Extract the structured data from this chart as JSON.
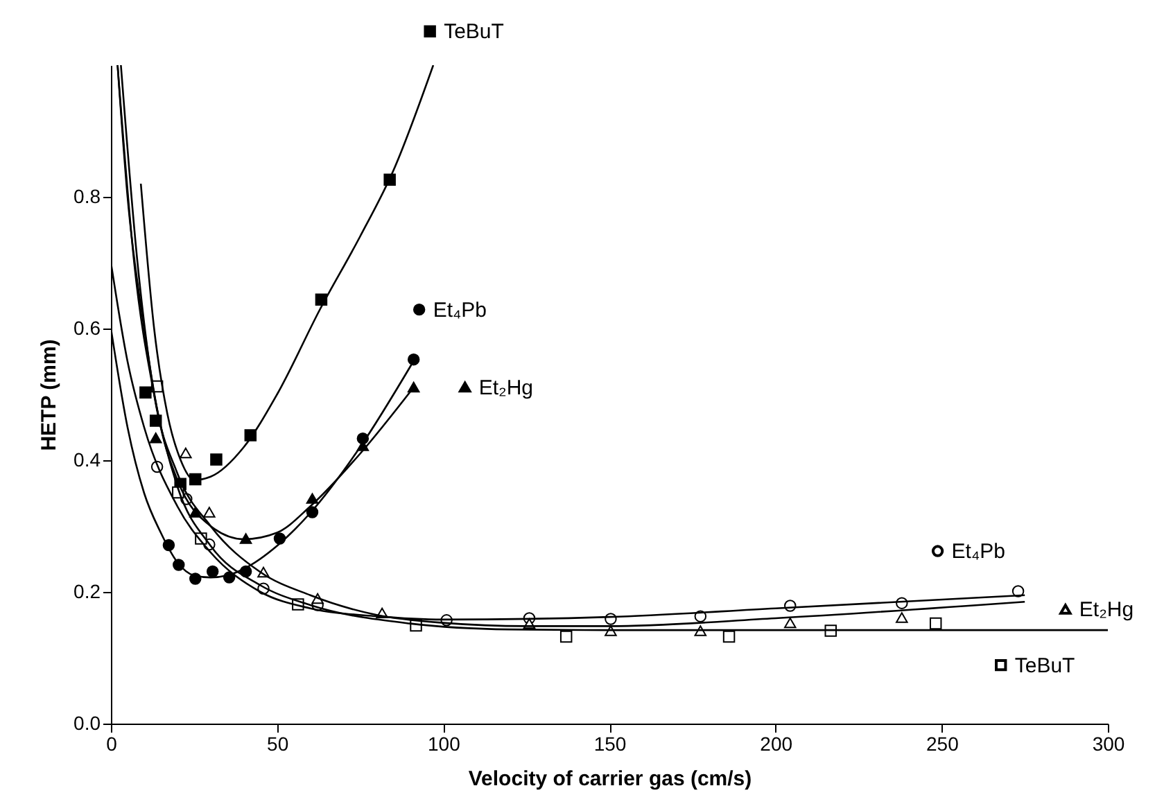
{
  "chart_data": {
    "type": "scatter",
    "xlabel": "Velocity of carrier gas (cm/s)",
    "ylabel": "HETP (mm)",
    "xlim": [
      0,
      300
    ],
    "xticks": [
      0,
      50,
      100,
      150,
      200,
      250,
      300
    ],
    "ylim": [
      0,
      1.0
    ],
    "yticks": [
      {
        "value": 0,
        "label": "0.0"
      },
      0.2,
      0.4,
      0.6,
      0.8
    ],
    "grid": false,
    "legend": "right",
    "series": [
      {
        "name": "TeBuT",
        "marker": "square",
        "color": "#000000",
        "x": [
          10.4,
          13.5,
          20.9,
          25.4,
          31.7,
          42,
          63.3,
          83.9
        ],
        "values": [
          0.503,
          0.46,
          0.364,
          0.371,
          0.401,
          0.438,
          0.644,
          0.826
        ]
      },
      {
        "name": "Et₄Pb",
        "marker": "circle",
        "color": "#000000",
        "x": [
          17.4,
          20.4,
          25.4,
          30.6,
          35.6,
          40.6,
          50.8,
          60.6,
          75.8,
          91.1
        ],
        "values": [
          0.271,
          0.241,
          0.22,
          0.231,
          0.222,
          0.231,
          0.281,
          0.321,
          0.433,
          0.553
        ]
      },
      {
        "name": "Et₂Hg",
        "marker": "triangle",
        "color": "#000000",
        "x": [
          13.5,
          25.4,
          40.6,
          60.6,
          75.8,
          91.1
        ],
        "values": [
          0.434,
          0.321,
          0.281,
          0.342,
          0.422,
          0.511
        ]
      },
      {
        "name": "Et₄Pb",
        "marker": "circle",
        "color": "#ffffff",
        "x": [
          13.9,
          22.7,
          29.6,
          45.9,
          62.2,
          101,
          125.9,
          150.4,
          177.4,
          204.4,
          238,
          273
        ],
        "values": [
          0.39,
          0.341,
          0.272,
          0.205,
          0.18,
          0.157,
          0.16,
          0.159,
          0.163,
          0.179,
          0.183,
          0.201
        ]
      },
      {
        "name": "Et₂Hg",
        "marker": "triangle",
        "color": "#ffffff",
        "x": [
          22.5,
          29.6,
          45.9,
          62.2,
          81.6,
          125.9,
          150.4,
          177.4,
          204.4,
          238
        ],
        "values": [
          0.411,
          0.321,
          0.23,
          0.19,
          0.168,
          0.152,
          0.141,
          0.141,
          0.153,
          0.161
        ]
      },
      {
        "name": "TeBuT",
        "marker": "square",
        "color": "#ffffff",
        "x": [
          13.9,
          20.2,
          27.1,
          56.3,
          91.8,
          137,
          186,
          216.6,
          248.2
        ],
        "values": [
          0.512,
          0.351,
          0.281,
          0.181,
          0.149,
          0.132,
          0.132,
          0.141,
          0.152
        ]
      },
      {
        "type": "line",
        "marker": "none",
        "color": "#000000",
        "x": [
          9,
          13,
          17,
          21,
          25,
          30,
          40,
          50,
          63,
          75,
          85,
          97
        ],
        "values": [
          0.82,
          0.6,
          0.47,
          0.4,
          0.37,
          0.375,
          0.42,
          0.5,
          0.63,
          0.74,
          0.84,
          1.0
        ]
      },
      {
        "type": "line",
        "marker": "none",
        "color": "#000000",
        "x": [
          0,
          5,
          10,
          15,
          20,
          25,
          30,
          35,
          40,
          50,
          60,
          75,
          91
        ],
        "values": [
          0.6,
          0.45,
          0.35,
          0.29,
          0.245,
          0.225,
          0.222,
          0.225,
          0.235,
          0.27,
          0.32,
          0.42,
          0.55
        ]
      },
      {
        "type": "line",
        "marker": "none",
        "color": "#000000",
        "x": [
          2,
          5,
          10,
          15,
          20,
          30,
          40,
          50,
          60,
          75,
          91
        ],
        "values": [
          1.0,
          0.8,
          0.6,
          0.45,
          0.37,
          0.3,
          0.28,
          0.29,
          0.33,
          0.41,
          0.51
        ]
      },
      {
        "type": "line",
        "marker": "none",
        "color": "#000000",
        "x": [
          0,
          5,
          10,
          20,
          30,
          45,
          60,
          80,
          100,
          150,
          200,
          275
        ],
        "values": [
          0.7,
          0.55,
          0.45,
          0.33,
          0.26,
          0.2,
          0.175,
          0.163,
          0.158,
          0.162,
          0.175,
          0.195
        ]
      },
      {
        "type": "line",
        "marker": "none",
        "color": "#000000",
        "x": [
          3,
          8,
          13,
          20,
          30,
          45,
          60,
          80,
          100,
          125,
          150,
          200,
          275
        ],
        "values": [
          1.0,
          0.7,
          0.5,
          0.38,
          0.3,
          0.23,
          0.195,
          0.165,
          0.153,
          0.148,
          0.148,
          0.16,
          0.185
        ]
      },
      {
        "type": "line",
        "marker": "none",
        "color": "#000000",
        "x": [
          2,
          7,
          13,
          20,
          30,
          45,
          60,
          90,
          120,
          150,
          200,
          300
        ],
        "values": [
          1.0,
          0.7,
          0.5,
          0.36,
          0.27,
          0.21,
          0.18,
          0.152,
          0.143,
          0.142,
          0.142,
          0.142
        ]
      }
    ]
  }
}
